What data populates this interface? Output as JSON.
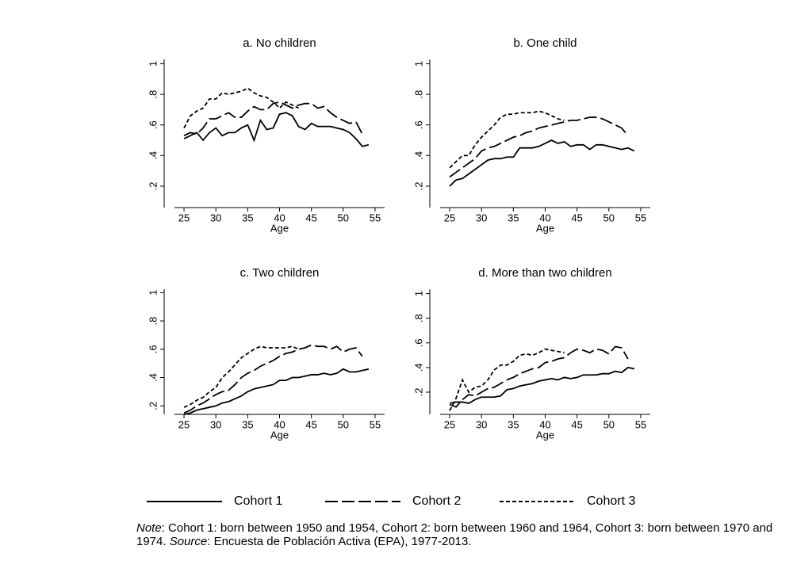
{
  "chart_data": [
    {
      "type": "line",
      "title": "a. No children",
      "xlabel": "Age",
      "x": [
        25,
        26,
        27,
        28,
        29,
        30,
        31,
        32,
        33,
        34,
        35,
        36,
        37,
        38,
        39,
        40,
        41,
        42,
        43,
        44,
        45,
        46,
        47,
        48,
        49,
        50,
        51,
        52,
        53,
        54
      ],
      "series": [
        {
          "values": [
            0.51,
            0.53,
            0.55,
            0.5,
            0.55,
            0.58,
            0.53,
            0.55,
            0.55,
            0.58,
            0.6,
            0.5,
            0.63,
            0.57,
            0.58,
            0.67,
            0.68,
            0.66,
            0.59,
            0.57,
            0.61,
            0.59,
            0.59,
            0.59,
            0.58,
            0.57,
            0.55,
            0.51,
            0.46,
            0.47
          ]
        },
        {
          "values": [
            0.53,
            0.55,
            0.54,
            0.58,
            0.64,
            0.64,
            0.66,
            0.68,
            0.65,
            0.65,
            0.69,
            0.72,
            0.7,
            0.7,
            0.74,
            0.75,
            0.73,
            0.71,
            0.73,
            0.74,
            0.74,
            0.71,
            0.72,
            0.68,
            0.65,
            0.63,
            0.61,
            0.62,
            0.54,
            null
          ]
        },
        {
          "values": [
            0.58,
            0.66,
            0.69,
            0.71,
            0.77,
            0.77,
            0.81,
            0.8,
            0.81,
            0.82,
            0.84,
            0.81,
            0.79,
            0.78,
            0.75,
            0.71,
            0.75,
            0.73,
            0.71,
            null,
            null,
            null,
            null,
            null,
            null,
            null,
            null,
            null,
            null,
            null
          ]
        }
      ],
      "xlim": [
        23.5,
        56.5
      ],
      "xticks": [
        25,
        30,
        35,
        40,
        45,
        50,
        55
      ],
      "ylim": [
        0.06,
        1.08
      ],
      "yticks": [
        {
          "value": 0.2,
          "label": ".2"
        },
        {
          "value": 0.4,
          "label": ".4"
        },
        {
          "value": 0.6,
          "label": ".6"
        },
        {
          "value": 0.8,
          "label": ".8"
        },
        {
          "value": 1,
          "label": "1"
        }
      ]
    },
    {
      "type": "line",
      "title": "b. One child",
      "xlabel": "Age",
      "x": [
        25,
        26,
        27,
        28,
        29,
        30,
        31,
        32,
        33,
        34,
        35,
        36,
        37,
        38,
        39,
        40,
        41,
        42,
        43,
        44,
        45,
        46,
        47,
        48,
        49,
        50,
        51,
        52,
        53,
        54
      ],
      "series": [
        {
          "values": [
            0.2,
            0.24,
            0.25,
            0.28,
            0.31,
            0.34,
            0.37,
            0.38,
            0.38,
            0.39,
            0.39,
            0.45,
            0.45,
            0.45,
            0.46,
            0.48,
            0.5,
            0.48,
            0.49,
            0.46,
            0.47,
            0.47,
            0.44,
            0.47,
            0.47,
            0.46,
            0.45,
            0.44,
            0.45,
            0.43
          ]
        },
        {
          "values": [
            0.26,
            0.29,
            0.32,
            0.35,
            0.38,
            0.43,
            0.45,
            0.46,
            0.48,
            0.5,
            0.52,
            0.53,
            0.55,
            0.56,
            0.58,
            0.59,
            0.6,
            0.61,
            0.62,
            0.63,
            0.63,
            0.64,
            0.65,
            0.65,
            0.64,
            0.62,
            0.6,
            0.58,
            0.53,
            null
          ]
        },
        {
          "values": [
            0.32,
            0.36,
            0.4,
            0.4,
            0.47,
            0.52,
            0.56,
            0.6,
            0.65,
            0.67,
            0.67,
            0.68,
            0.68,
            0.68,
            0.69,
            0.68,
            0.66,
            0.64,
            0.63,
            null,
            null,
            null,
            null,
            null,
            null,
            null,
            null,
            null,
            null,
            null
          ]
        }
      ],
      "xlim": [
        23.5,
        56.5
      ],
      "xticks": [
        25,
        30,
        35,
        40,
        45,
        50,
        55
      ],
      "ylim": [
        0.06,
        1.08
      ],
      "yticks": [
        {
          "value": 0.2,
          "label": ".2"
        },
        {
          "value": 0.4,
          "label": ".4"
        },
        {
          "value": 0.6,
          "label": ".6"
        },
        {
          "value": 0.8,
          "label": ".8"
        },
        {
          "value": 1,
          "label": "1"
        }
      ]
    },
    {
      "type": "line",
      "title": "c. Two children",
      "xlabel": "Age",
      "x": [
        25,
        26,
        27,
        28,
        29,
        30,
        31,
        32,
        33,
        34,
        35,
        36,
        37,
        38,
        39,
        40,
        41,
        42,
        43,
        44,
        45,
        46,
        47,
        48,
        49,
        50,
        51,
        52,
        53,
        54
      ],
      "series": [
        {
          "values": [
            0.14,
            0.15,
            0.17,
            0.18,
            0.19,
            0.2,
            0.22,
            0.23,
            0.25,
            0.27,
            0.3,
            0.32,
            0.33,
            0.34,
            0.35,
            0.38,
            0.38,
            0.4,
            0.4,
            0.41,
            0.42,
            0.42,
            0.43,
            0.42,
            0.43,
            0.46,
            0.44,
            0.44,
            0.45,
            0.46
          ]
        },
        {
          "values": [
            0.15,
            0.17,
            0.2,
            0.22,
            0.25,
            0.28,
            0.3,
            0.31,
            0.35,
            0.4,
            0.43,
            0.45,
            0.48,
            0.5,
            0.52,
            0.55,
            0.57,
            0.58,
            0.6,
            0.61,
            0.63,
            0.62,
            0.62,
            0.6,
            0.62,
            0.58,
            0.6,
            0.61,
            0.55,
            null
          ]
        },
        {
          "values": [
            0.19,
            0.21,
            0.24,
            0.26,
            0.3,
            0.33,
            0.4,
            0.44,
            0.49,
            0.54,
            0.57,
            0.6,
            0.62,
            0.61,
            0.61,
            0.61,
            0.61,
            0.62,
            0.6,
            null,
            null,
            null,
            null,
            null,
            null,
            null,
            null,
            null,
            null,
            null
          ]
        }
      ],
      "xlim": [
        23.5,
        56.5
      ],
      "xticks": [
        25,
        30,
        35,
        40,
        45,
        50,
        55
      ],
      "ylim": [
        0.14,
        1.08
      ],
      "yticks": [
        {
          "value": 0.2,
          "label": ".2"
        },
        {
          "value": 0.4,
          "label": ".4"
        },
        {
          "value": 0.6,
          "label": ".6"
        },
        {
          "value": 0.8,
          "label": ".8"
        },
        {
          "value": 1,
          "label": "1"
        }
      ]
    },
    {
      "type": "line",
      "title": "d. More than two children",
      "xlabel": "Age",
      "x": [
        25,
        26,
        27,
        28,
        29,
        30,
        31,
        32,
        33,
        34,
        35,
        36,
        37,
        38,
        39,
        40,
        41,
        42,
        43,
        44,
        45,
        46,
        47,
        48,
        49,
        50,
        51,
        52,
        53,
        54
      ],
      "series": [
        {
          "values": [
            0.11,
            0.12,
            0.12,
            0.11,
            0.14,
            0.16,
            0.16,
            0.16,
            0.17,
            0.22,
            0.23,
            0.25,
            0.26,
            0.27,
            0.29,
            0.3,
            0.31,
            0.3,
            0.32,
            0.31,
            0.32,
            0.34,
            0.34,
            0.34,
            0.35,
            0.35,
            0.37,
            0.36,
            0.4,
            0.39
          ]
        },
        {
          "values": [
            0.1,
            0.08,
            0.14,
            0.18,
            0.17,
            0.2,
            0.23,
            0.24,
            0.27,
            0.3,
            0.32,
            0.35,
            0.37,
            0.39,
            0.4,
            0.44,
            0.45,
            0.47,
            0.48,
            0.52,
            0.55,
            0.54,
            0.52,
            0.55,
            0.54,
            0.51,
            0.57,
            0.56,
            0.47,
            null
          ]
        },
        {
          "values": [
            0.05,
            0.15,
            0.3,
            0.2,
            0.24,
            0.25,
            0.3,
            0.38,
            0.42,
            0.42,
            0.45,
            0.5,
            0.51,
            0.5,
            0.52,
            0.55,
            0.54,
            0.53,
            0.52,
            null,
            null,
            null,
            null,
            null,
            null,
            null,
            null,
            null,
            null,
            null
          ]
        }
      ],
      "xlim": [
        23.5,
        56.5
      ],
      "xticks": [
        25,
        30,
        35,
        40,
        45,
        50,
        55
      ],
      "ylim": [
        0.02,
        1.1
      ],
      "yticks": [
        {
          "value": 0.2,
          "label": ".2"
        },
        {
          "value": 0.4,
          "label": ".4"
        },
        {
          "value": 0.6,
          "label": ".6"
        },
        {
          "value": 0.8,
          "label": ".8"
        },
        {
          "value": 1,
          "label": "1"
        }
      ]
    }
  ],
  "legend": {
    "entries": [
      "Cohort 1",
      "Cohort 2",
      "Cohort 3"
    ],
    "styles": [
      "solid",
      "longdash",
      "shortdash"
    ],
    "color": "#000000"
  },
  "note": {
    "label": "Note",
    "text": ": Cohort 1: born between 1950 and 1954, Cohort 2: born between 1960 and 1964, Cohort 3: born between 1970 and 1974.",
    "source_label": "Source",
    "source_text": ": Encuesta de Población Activa (EPA), 1977-2013."
  }
}
